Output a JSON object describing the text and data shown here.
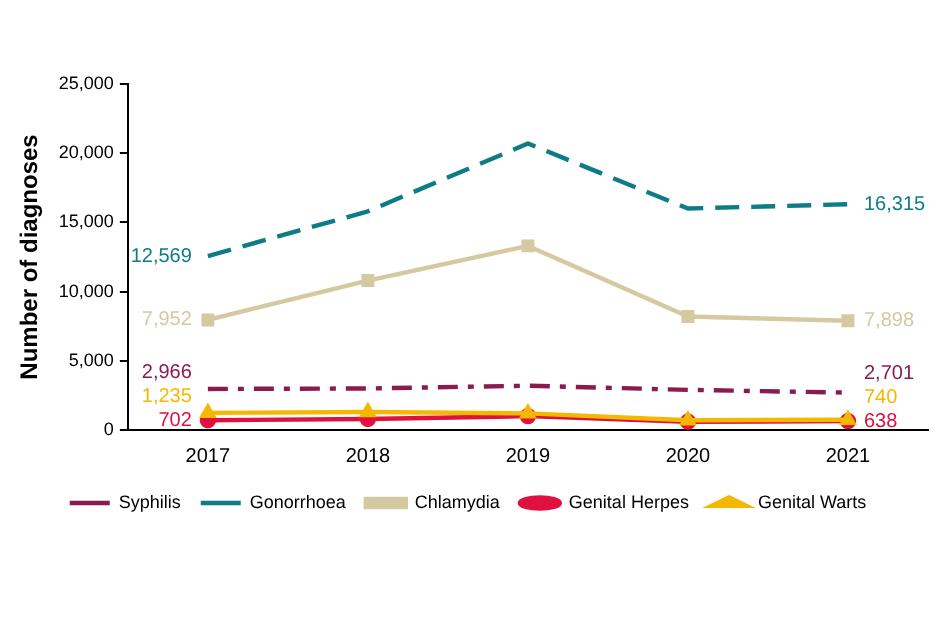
{
  "chart_data": {
    "type": "line",
    "ylabel": "Number of diagnoses",
    "categories": [
      "2017",
      "2018",
      "2019",
      "2020",
      "2021"
    ],
    "ylim": [
      0,
      25000
    ],
    "yticks": [
      {
        "value": 0,
        "label": "0"
      },
      {
        "value": 5000,
        "label": "5,000"
      },
      {
        "value": 10000,
        "label": "10,000"
      },
      {
        "value": 15000,
        "label": "15,000"
      },
      {
        "value": 20000,
        "label": "20,000"
      },
      {
        "value": 25000,
        "label": "25,000"
      }
    ],
    "grid": false,
    "legend": "bottom",
    "series": [
      {
        "name": "Syphilis",
        "color": "#8b1a4f",
        "line_style": "dashed",
        "marker": "none",
        "values": [
          2966,
          3000,
          3200,
          2900,
          2701
        ],
        "value_labels": [
          "2,966",
          null,
          null,
          null,
          "2,701"
        ]
      },
      {
        "name": "Gonorrhoea",
        "color": "#0e7c86",
        "line_style": "dashed",
        "marker": "none",
        "values": [
          12569,
          15800,
          20700,
          16000,
          16315
        ],
        "value_labels": [
          "12,569",
          null,
          null,
          null,
          "16,315"
        ]
      },
      {
        "name": "Chlamydia",
        "color": "#d4c9a0",
        "line_style": "solid",
        "marker": "square",
        "values": [
          7952,
          10800,
          13300,
          8200,
          7898
        ],
        "value_labels": [
          "7,952",
          null,
          null,
          null,
          "7,898"
        ]
      },
      {
        "name": "Genital Herpes",
        "color": "#e0103f",
        "line_style": "solid",
        "marker": "circle",
        "values": [
          702,
          800,
          1000,
          600,
          638
        ],
        "value_labels": [
          "702",
          null,
          null,
          null,
          "638"
        ]
      },
      {
        "name": "Genital Warts",
        "color": "#f5b800",
        "line_style": "solid",
        "marker": "triangle",
        "values": [
          1235,
          1300,
          1200,
          700,
          740
        ],
        "value_labels": [
          "1,235",
          null,
          null,
          null,
          "740"
        ]
      }
    ]
  }
}
